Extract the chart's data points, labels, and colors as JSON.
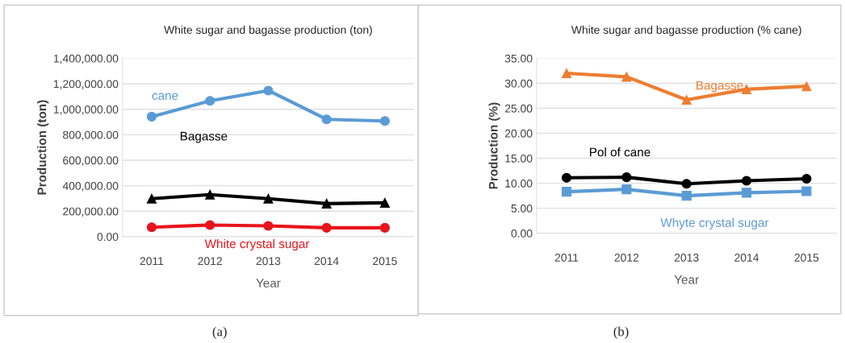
{
  "chart_data": [
    {
      "type": "line",
      "title": "White sugar and bagasse production (ton)",
      "xlabel": "Year",
      "ylabel": "Production (ton)",
      "categories": [
        "2011",
        "2012",
        "2013",
        "2014",
        "2015"
      ],
      "series": [
        {
          "name": "cane",
          "color": "#5b9bd5",
          "marker": "circle",
          "values": [
            942000,
            1066000,
            1147000,
            921000,
            908000
          ]
        },
        {
          "name": "Bagasse",
          "color": "#000000",
          "marker": "triangle",
          "values": [
            298000,
            330000,
            298000,
            260000,
            266000
          ]
        },
        {
          "name": "White crystal sugar",
          "color": "#e8141b",
          "marker": "circle",
          "values": [
            74000,
            91000,
            85000,
            70000,
            70000
          ]
        }
      ],
      "ylim": [
        0,
        1400000
      ],
      "yticks": [
        {
          "value": 0,
          "label": "0.00"
        },
        {
          "value": 200000,
          "label": "200,000.00"
        },
        {
          "value": 400000,
          "label": "400,000.00"
        },
        {
          "value": 600000,
          "label": "600,000.00"
        },
        {
          "value": 800000,
          "label": "800,000.00"
        },
        {
          "value": 1000000,
          "label": "1,000,000.00"
        },
        {
          "value": 1200000,
          "label": "1,200,000.00"
        },
        {
          "value": 1400000,
          "label": "1,400,000.00"
        }
      ],
      "grid": "y",
      "legend": false,
      "annotations": [
        "(a)"
      ]
    },
    {
      "type": "line",
      "title": "White sugar and bagasse production (% cane)",
      "xlabel": "Year",
      "ylabel": "Production (%)",
      "categories": [
        "2011",
        "2012",
        "2013",
        "2014",
        "2015"
      ],
      "series": [
        {
          "name": "Bagasse",
          "color": "#ed7d31",
          "marker": "triangle",
          "values": [
            32.0,
            31.3,
            26.7,
            28.8,
            29.4
          ]
        },
        {
          "name": "Pol of cane",
          "color": "#000000",
          "marker": "circle",
          "values": [
            11.1,
            11.2,
            9.9,
            10.5,
            10.9
          ]
        },
        {
          "name": "Whyte crystal sugar",
          "color": "#5b9bd5",
          "marker": "square",
          "values": [
            8.3,
            8.8,
            7.5,
            8.1,
            8.4
          ]
        }
      ],
      "ylim": [
        0,
        35
      ],
      "yticks": [
        {
          "value": 0,
          "label": "0.00"
        },
        {
          "value": 5,
          "label": "5.00"
        },
        {
          "value": 10,
          "label": "10.00"
        },
        {
          "value": 15,
          "label": "15.00"
        },
        {
          "value": 20,
          "label": "20.00"
        },
        {
          "value": 25,
          "label": "25.00"
        },
        {
          "value": 30,
          "label": "30.00"
        },
        {
          "value": 35,
          "label": "35.00"
        }
      ],
      "grid": "y",
      "legend": false,
      "annotations": [
        "(b)"
      ]
    }
  ]
}
